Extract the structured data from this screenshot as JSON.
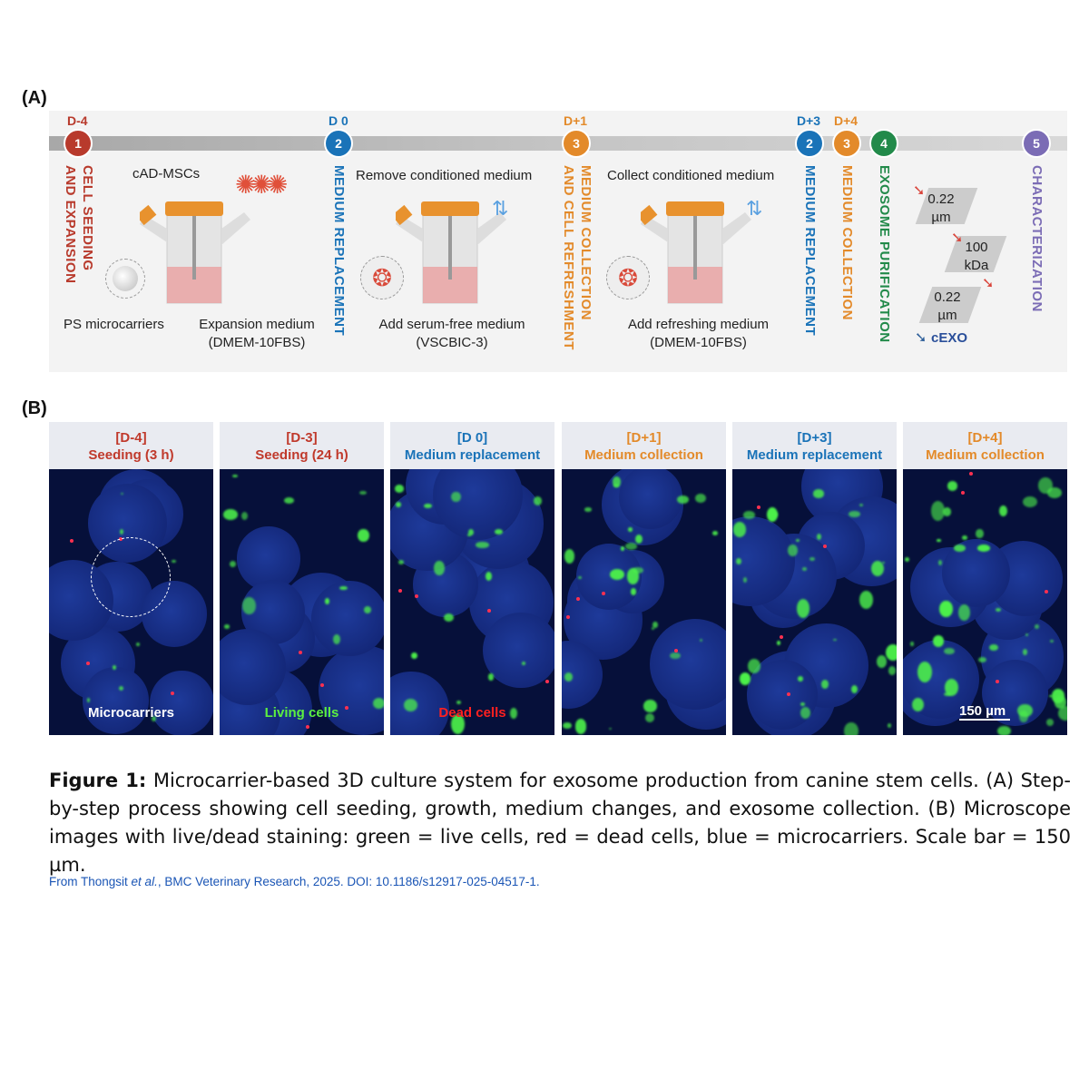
{
  "panel_a": {
    "label": "(A)",
    "steps": [
      {
        "day": "D-4",
        "num": "1",
        "color": "#b83a2c",
        "title_lines": [
          "CELL SEEDING",
          "AND EXPANSION"
        ]
      },
      {
        "day": "D 0",
        "num": "2",
        "color": "#1a73b8",
        "title_lines": [
          "MEDIUM REPLACEMENT"
        ]
      },
      {
        "day": "D+1",
        "num": "3",
        "color": "#e38a2a",
        "title_lines": [
          "MEDIUM COLLECTION",
          "AND CELL REFRESHMENT"
        ]
      },
      {
        "day": "D+3",
        "num": "2",
        "color": "#1a73b8",
        "title_lines": [
          "MEDIUM REPLACEMENT"
        ]
      },
      {
        "day": "D+4",
        "num": "3",
        "color": "#e38a2a",
        "title_lines": [
          "MEDIUM COLLECTION"
        ]
      },
      {
        "day": "",
        "num": "4",
        "color": "#228a4a",
        "title_lines": [
          "EXOSOME PURIFICATION"
        ]
      },
      {
        "day": "",
        "num": "5",
        "color": "#7b6cb5",
        "title_lines": [
          "CHARACTERIZATION"
        ]
      }
    ],
    "stage1": {
      "cells": "cAD-MSCs",
      "carriers": "PS microcarriers",
      "medium": "Expansion medium",
      "medium_sub": "(DMEM-10FBS)"
    },
    "stage2": {
      "top": "Remove conditioned medium",
      "bottom": "Add serum-free medium",
      "bottom_sub": "(VSCBIC-3)"
    },
    "stage3": {
      "top": "Collect conditioned medium",
      "bottom": "Add refreshing medium",
      "bottom_sub": "(DMEM-10FBS)"
    },
    "purification": {
      "filter1": [
        "0.22",
        "µm"
      ],
      "filter2": [
        "100",
        "kDa"
      ],
      "filter3": [
        "0.22",
        "µm"
      ],
      "product": "cEXO"
    }
  },
  "panel_b": {
    "label": "(B)",
    "images": [
      {
        "day": "[D-4]",
        "stage": "Seeding (3 h)",
        "color": "#c0392b",
        "annotation": "Microcarriers",
        "annotation_color": "#ffffff"
      },
      {
        "day": "[D-3]",
        "stage": "Seeding (24 h)",
        "color": "#c0392b",
        "annotation": "Living cells",
        "annotation_color": "#5cf040"
      },
      {
        "day": "[D 0]",
        "stage": "Medium replacement",
        "color": "#1a73b8",
        "annotation": "Dead cells",
        "annotation_color": "#ff2020"
      },
      {
        "day": "[D+1]",
        "stage": "Medium collection",
        "color": "#e38a2a",
        "annotation": "",
        "annotation_color": ""
      },
      {
        "day": "[D+3]",
        "stage": "Medium replacement",
        "color": "#1a73b8",
        "annotation": "",
        "annotation_color": ""
      },
      {
        "day": "[D+4]",
        "stage": "Medium collection",
        "color": "#e38a2a",
        "annotation": "150 µm",
        "annotation_color": "#ffffff"
      }
    ]
  },
  "caption": {
    "label": "Figure 1:",
    "text": " Microcarrier-based 3D culture system for exosome production from canine stem cells. (A) Step-by-step process showing cell seeding, growth, medium changes, and exosome collection. (B) Microscope images with live/dead staining: green = live cells, red = dead cells, blue = microcarriers. Scale bar = 150 µm.",
    "source_prefix": "From Thongsit ",
    "source_etal": "et al.",
    "source_suffix": ", BMC Veterinary Research, 2025. DOI: 10.1186/s12917-025-04517-1."
  }
}
